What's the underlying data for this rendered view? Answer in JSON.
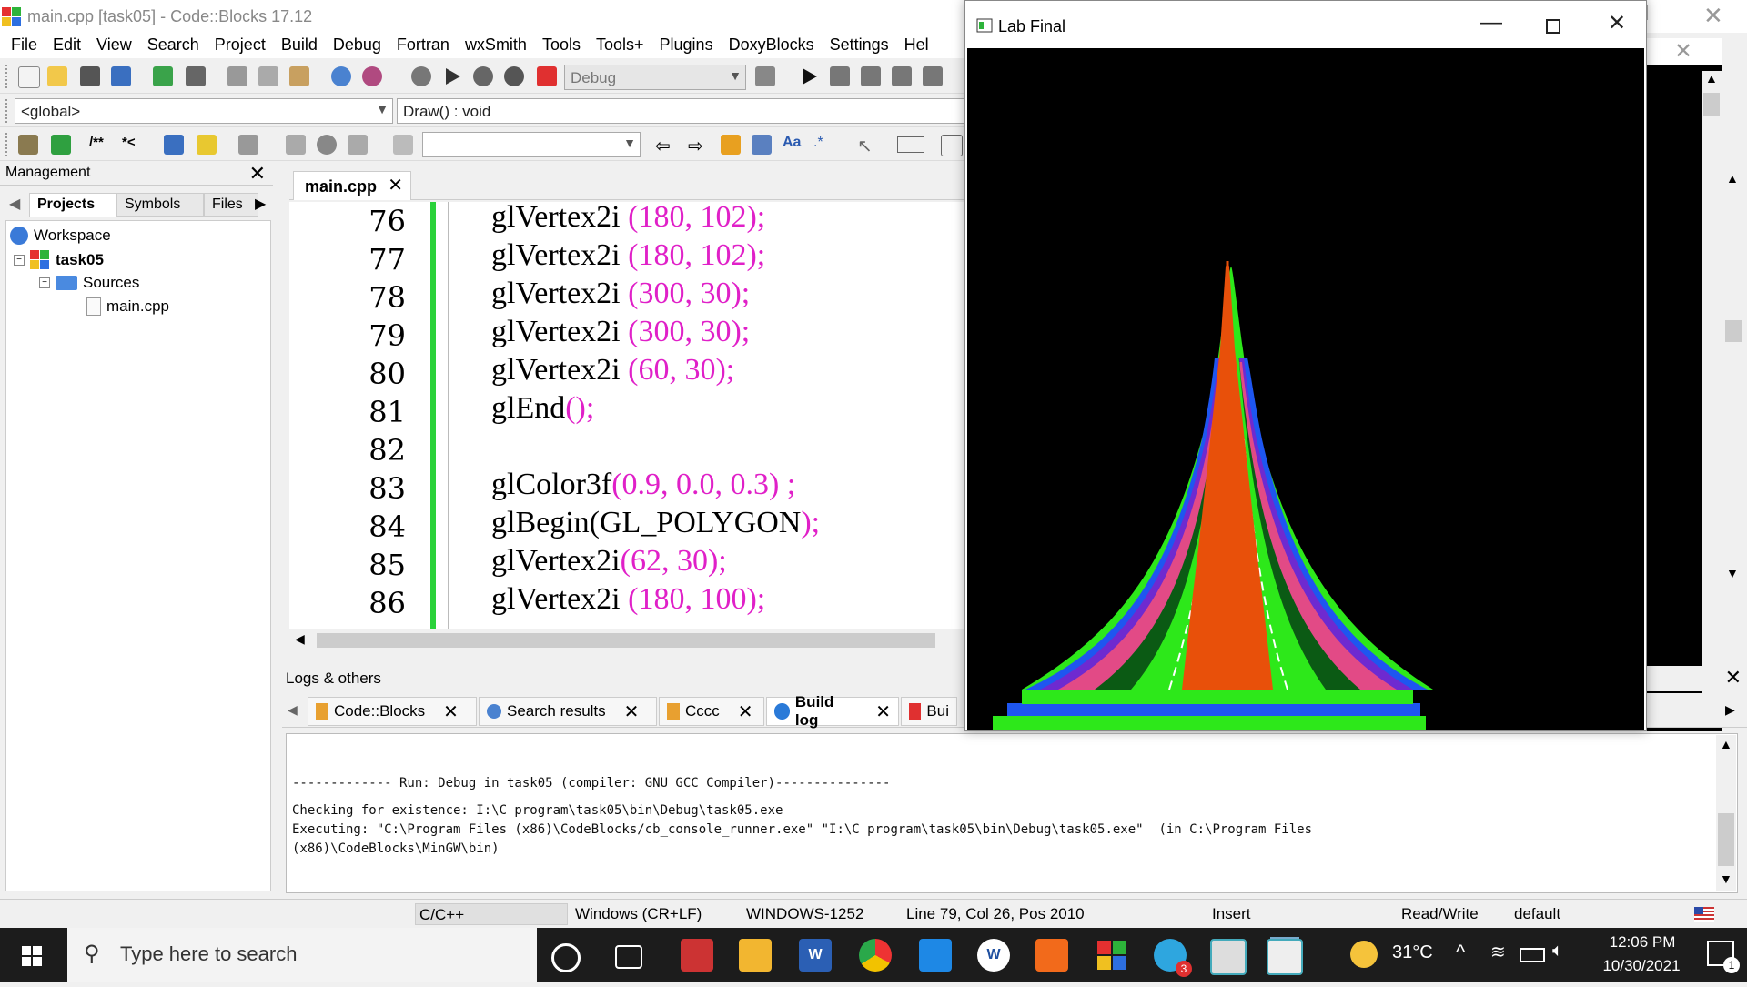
{
  "window_title": "main.cpp [task05] - Code::Blocks 17.12",
  "menu": [
    "File",
    "Edit",
    "View",
    "Search",
    "Project",
    "Build",
    "Debug",
    "Fortran",
    "wxSmith",
    "Tools",
    "Tools+",
    "Plugins",
    "DoxyBlocks",
    "Settings",
    "Hel"
  ],
  "toolbar": {
    "build_target": "Debug",
    "scope": "<global>",
    "function": "Draw() : void",
    "search_value": ""
  },
  "management": {
    "title": "Management",
    "tabs": [
      "Projects",
      "Symbols",
      "Files"
    ],
    "tree": {
      "workspace": "Workspace",
      "project": "task05",
      "folder": "Sources",
      "file": "main.cpp"
    }
  },
  "editor": {
    "tab": "main.cpp",
    "lines": [
      {
        "num": "76",
        "fn": "glVertex2i ",
        "open": "(",
        "args": "180, 102",
        "close": ");"
      },
      {
        "num": "77",
        "fn": "glVertex2i ",
        "open": "(",
        "args": "180, 102",
        "close": ");"
      },
      {
        "num": "78",
        "fn": "glVertex2i ",
        "open": "(",
        "args": "300, 30",
        "close": ");"
      },
      {
        "num": "79",
        "fn": "glVertex2i ",
        "open": "(",
        "args": "300, 30",
        "close": ");"
      },
      {
        "num": "80",
        "fn": "glVertex2i ",
        "open": "(",
        "args": "60, 30",
        "close": ");"
      },
      {
        "num": "81",
        "fn": "glEnd",
        "open": "(",
        "args": "",
        "close": ");"
      },
      {
        "num": "82",
        "fn": "",
        "open": "",
        "args": "",
        "close": ""
      },
      {
        "num": "83",
        "fn": "glColor3f",
        "open": "(",
        "args": "0.9, 0.0, 0.3",
        "close": ") ;"
      },
      {
        "num": "84",
        "fn": "glBegin(GL_POLYGON",
        "open": "",
        "args": "",
        "close": ");"
      },
      {
        "num": "85",
        "fn": "glVertex2i",
        "open": "(",
        "args": "62, 30",
        "close": ");"
      },
      {
        "num": "86",
        "fn": "glVertex2i ",
        "open": "(",
        "args": "180, 100",
        "close": ");"
      }
    ]
  },
  "logs": {
    "title": "Logs & others",
    "tabs": [
      "Code::Blocks",
      "Search results",
      "Cccc",
      "Build log",
      "Bui"
    ],
    "active_tab": "Build log",
    "lines": [
      "------------- Run: Debug in task05 (compiler: GNU GCC Compiler)---------------",
      "Checking for existence: I:\\C program\\task05\\bin\\Debug\\task05.exe",
      "Executing: \"C:\\Program Files (x86)\\CodeBlocks/cb_console_runner.exe\" \"I:\\C program\\task05\\bin\\Debug\\task05.exe\"  (in C:\\Program Files",
      "(x86)\\CodeBlocks\\MinGW\\bin)"
    ]
  },
  "statusbar": {
    "language": "C/C++",
    "eol": "Windows (CR+LF)",
    "encoding": "WINDOWS-1252",
    "position": "Line 79, Col 26, Pos 2010",
    "mode": "Insert",
    "access": "Read/Write",
    "profile": "default"
  },
  "lab_window": {
    "title": "Lab Final"
  },
  "taskbar": {
    "search_placeholder": "Type here to search",
    "temperature": "31°C",
    "time": "12:06 PM",
    "date": "10/30/2021",
    "telegram_badge": "3",
    "notification_badge": "1"
  },
  "colors": {
    "orange": "#e8500a",
    "green": "#2de81a",
    "dark_green": "#0b5a14",
    "pink": "#e24a86",
    "purple": "#6e2ad0",
    "blue": "#1e56f0"
  }
}
